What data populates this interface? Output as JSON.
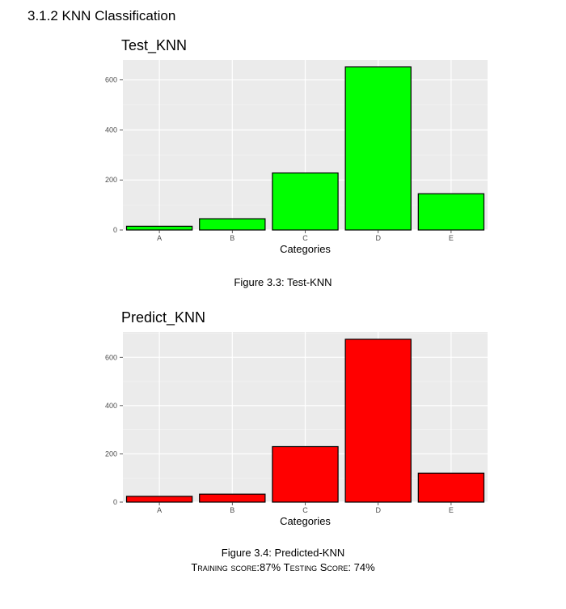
{
  "section_heading": "3.1.2  KNN Classification",
  "captions": {
    "figure_1": "Figure 3.3: Test-KNN",
    "figure_2": "Figure 3.4: Predicted-KNN"
  },
  "scores": {
    "training_label": "Training score:",
    "training_value": "87%",
    "testing_label": "Testing Score:",
    "testing_value": "74%"
  },
  "chart_data": [
    {
      "type": "bar",
      "title": "Test_KNN",
      "xlabel": "Categories",
      "ylabel": "",
      "categories": [
        "A",
        "B",
        "C",
        "D",
        "E"
      ],
      "values": [
        15,
        45,
        228,
        652,
        145
      ],
      "ylim": [
        0,
        680
      ],
      "yticks": [
        0,
        200,
        400,
        600
      ],
      "bar_color": "#00ff00",
      "bar_edge_color": "#000000",
      "panel_color": "#ebebeb",
      "grid": true
    },
    {
      "type": "bar",
      "title": "Predict_KNN",
      "xlabel": "Categories",
      "ylabel": "",
      "categories": [
        "A",
        "B",
        "C",
        "D",
        "E"
      ],
      "values": [
        24,
        33,
        230,
        675,
        120
      ],
      "ylim": [
        0,
        705
      ],
      "yticks": [
        0,
        200,
        400,
        600
      ],
      "bar_color": "#ff0000",
      "bar_edge_color": "#000000",
      "panel_color": "#ebebeb",
      "grid": true
    }
  ]
}
